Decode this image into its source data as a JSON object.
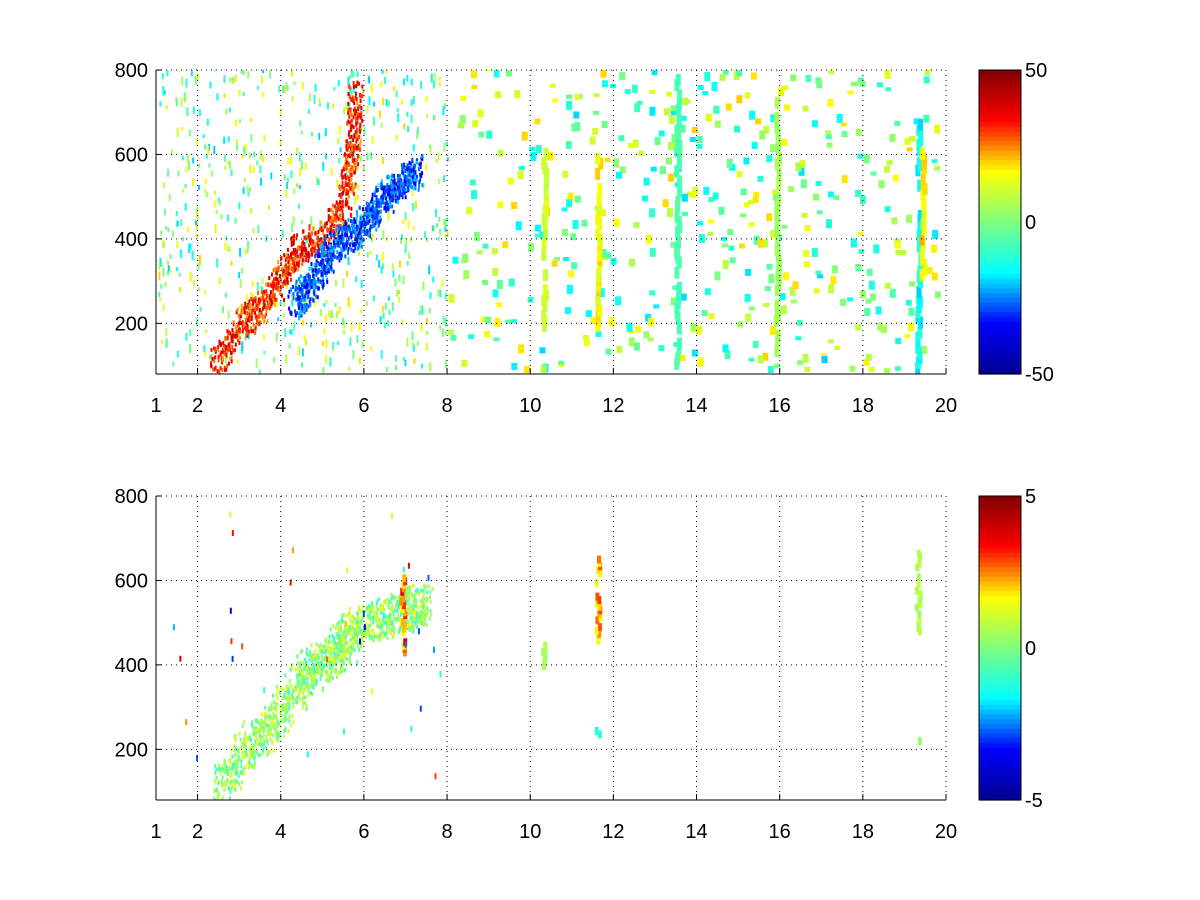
{
  "colors": {
    "background": "#ffffff",
    "axis": "#000000",
    "grid": "#000000",
    "colormap": "jet",
    "colormap_stops": [
      "#00008f",
      "#0000ff",
      "#00ffff",
      "#7fff7f",
      "#ffff00",
      "#ff0000",
      "#800000"
    ]
  },
  "chart_data": [
    {
      "type": "heatmap",
      "title": "",
      "xlabel": "",
      "ylabel": "",
      "xlim": [
        1,
        20
      ],
      "ylim": [
        80,
        800
      ],
      "x_ticks": [
        1,
        2,
        4,
        6,
        8,
        10,
        12,
        14,
        16,
        18,
        20
      ],
      "y_ticks": [
        200,
        400,
        600,
        800
      ],
      "grid": true,
      "grid_style": "dotted",
      "colorbar": {
        "range": [
          -50,
          50
        ],
        "ticks": [
          -50,
          0,
          50
        ],
        "location": "right"
      },
      "ridges": [
        {
          "name": "positive-band",
          "points": [
            [
              2.4,
              100
            ],
            [
              3.0,
              190
            ],
            [
              3.5,
              230
            ],
            [
              4.0,
              300
            ],
            [
              4.4,
              370
            ],
            [
              5.0,
              400
            ],
            [
              5.5,
              470
            ],
            [
              5.7,
              600
            ],
            [
              5.8,
              750
            ]
          ],
          "value": 40
        },
        {
          "name": "negative-band",
          "points": [
            [
              4.3,
              240
            ],
            [
              4.8,
              300
            ],
            [
              5.2,
              370
            ],
            [
              5.8,
              410
            ],
            [
              6.3,
              470
            ],
            [
              6.8,
              520
            ],
            [
              7.3,
              560
            ]
          ],
          "value": -35
        }
      ],
      "vertical_streaks": [
        {
          "x": 10.3,
          "y": [
            180,
            600
          ],
          "value": 12
        },
        {
          "x": 11.6,
          "y": [
            180,
            600
          ],
          "value": 18
        },
        {
          "x": 13.5,
          "y": [
            90,
            780
          ],
          "value": -8
        },
        {
          "x": 15.9,
          "y": [
            120,
            720
          ],
          "value": 5
        },
        {
          "x": 19.3,
          "y": [
            80,
            680
          ],
          "value": -18
        },
        {
          "x": 19.4,
          "y": [
            300,
            600
          ],
          "value": 20
        }
      ],
      "scatter_extent": {
        "x": [
          1,
          19.8
        ],
        "y": [
          80,
          800
        ],
        "value_range": [
          -20,
          20
        ]
      }
    },
    {
      "type": "heatmap",
      "title": "",
      "xlabel": "",
      "ylabel": "",
      "xlim": [
        1,
        20
      ],
      "ylim": [
        80,
        800
      ],
      "x_ticks": [
        1,
        2,
        4,
        6,
        8,
        10,
        12,
        14,
        16,
        18,
        20
      ],
      "y_ticks": [
        200,
        400,
        600,
        800
      ],
      "grid": true,
      "grid_style": "dotted",
      "colorbar": {
        "range": [
          -5,
          5
        ],
        "ticks": [
          -5,
          0,
          5
        ],
        "location": "right"
      },
      "band": {
        "points": [
          [
            2.5,
            100
          ],
          [
            3.2,
            200
          ],
          [
            4.0,
            280
          ],
          [
            4.6,
            380
          ],
          [
            5.3,
            420
          ],
          [
            5.7,
            480
          ],
          [
            6.3,
            500
          ],
          [
            7.0,
            520
          ],
          [
            7.4,
            540
          ]
        ],
        "value_range": [
          -1,
          1.5
        ]
      },
      "clusters": [
        {
          "x": 6.9,
          "y": [
            420,
            600
          ],
          "value": 3
        },
        {
          "x": 10.3,
          "y": [
            380,
            440
          ],
          "value": 0.5
        },
        {
          "x": 11.6,
          "y": [
            440,
            650
          ],
          "value": 2.5
        },
        {
          "x": 11.6,
          "y": [
            210,
            240
          ],
          "value": -1
        },
        {
          "x": 19.3,
          "y": [
            470,
            660
          ],
          "value": 0.8
        },
        {
          "x": 19.3,
          "y": [
            210,
            240
          ],
          "value": 0.3
        }
      ]
    }
  ]
}
